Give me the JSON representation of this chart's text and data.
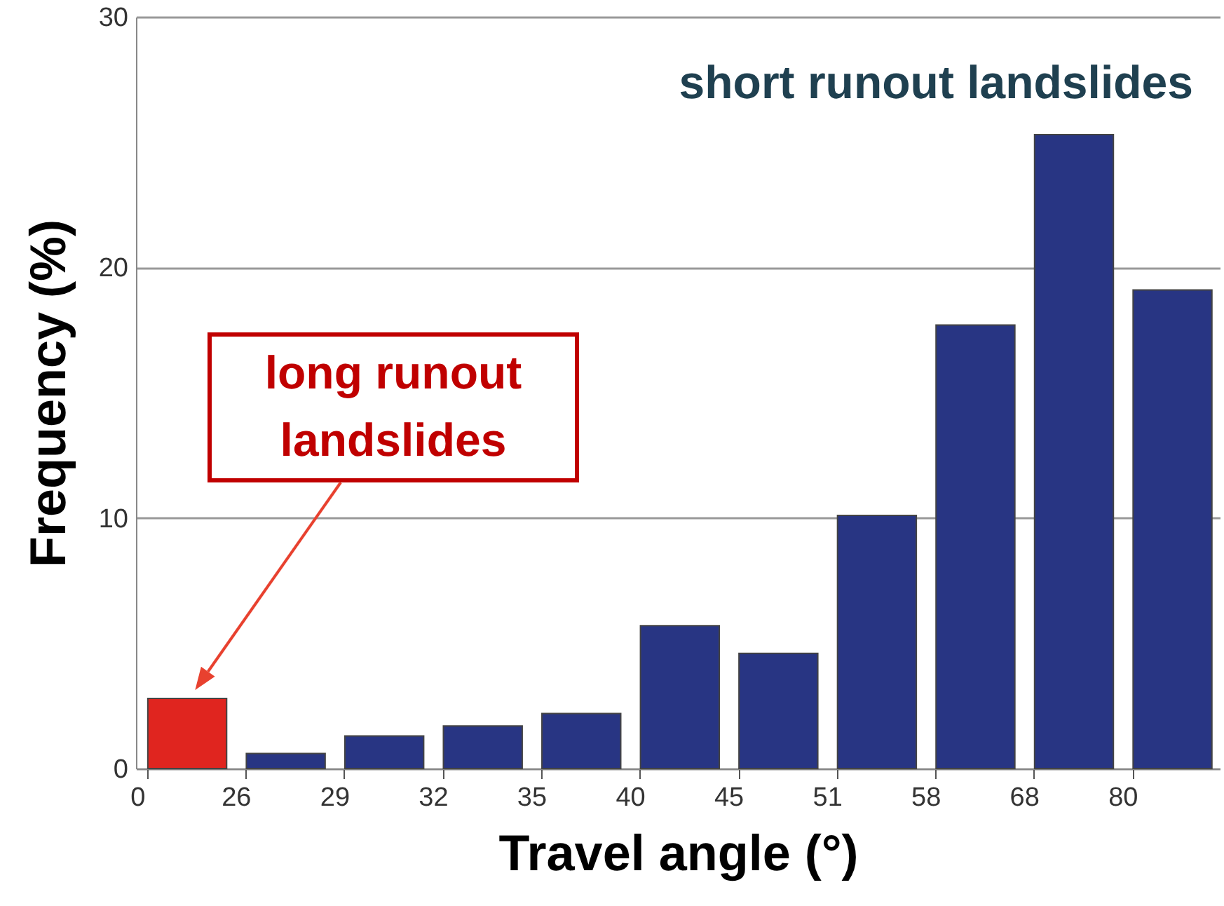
{
  "chart_data": {
    "type": "bar",
    "xlabel": "Travel angle (°)",
    "ylabel": "Frequency (%)",
    "categories": [
      "0",
      "26",
      "29",
      "32",
      "35",
      "40",
      "45",
      "51",
      "58",
      "68",
      "80"
    ],
    "values": [
      2.8,
      0.6,
      1.3,
      1.7,
      2.2,
      5.7,
      4.6,
      10.1,
      17.7,
      25.3,
      19.1
    ],
    "colors": [
      "#e0251f",
      "#283583",
      "#283583",
      "#283583",
      "#283583",
      "#283583",
      "#283583",
      "#283583",
      "#283583",
      "#283583",
      "#283583"
    ],
    "ylim": [
      0,
      30
    ],
    "yticks": [
      0,
      10,
      20,
      30
    ],
    "grid": "y",
    "annotations": [
      "short runout landslides",
      "long runout landslides"
    ]
  }
}
